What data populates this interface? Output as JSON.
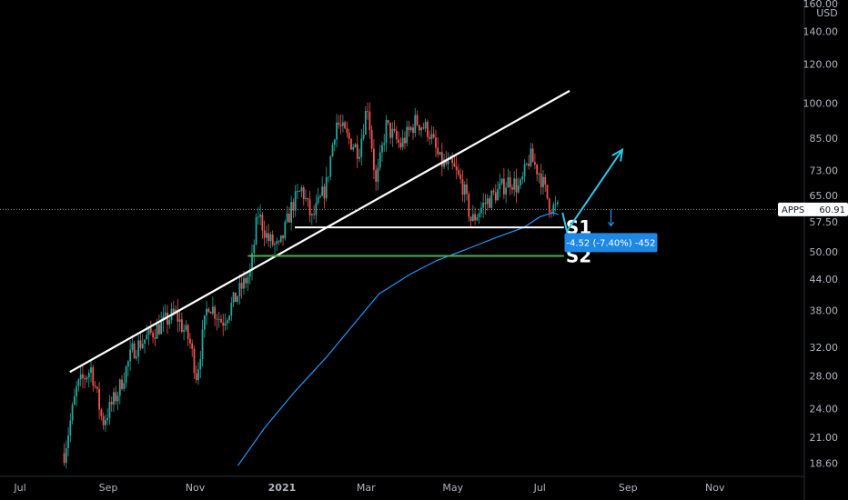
{
  "chart_data": {
    "type": "candlestick",
    "symbol": "APPS",
    "currency": "USD",
    "y_scale": "log",
    "ylim": [
      17.5,
      162
    ],
    "y_ticks": [
      "160.00",
      "140.00",
      "120.00",
      "100.00",
      "85.00",
      "73.00",
      "65.00",
      "57.50",
      "50.00",
      "44.00",
      "38.00",
      "32.00",
      "28.00",
      "24.00",
      "21.00",
      "18.60"
    ],
    "x_ticks": [
      "Jul",
      "Sep",
      "Nov",
      "2021",
      "Mar",
      "May",
      "Jul",
      "Sep",
      "Nov"
    ],
    "last_price": {
      "symbol": "APPS",
      "value": "60.91"
    },
    "trend_line": {
      "start": [
        "2020-08-05",
        28.5
      ],
      "end": [
        "2021-07-22",
        106.0
      ],
      "color": "#ffffff"
    },
    "support_levels": [
      {
        "name": "S1",
        "value": 56.0,
        "from": "2021-01-10",
        "to": "2021-07-18",
        "color": "#ffffff"
      },
      {
        "name": "S2",
        "value": 49.0,
        "from": "2020-12-08",
        "to": "2021-07-18",
        "color": "#4caf50"
      }
    ],
    "moving_average": {
      "color": "#2196f3",
      "points": [
        [
          "2020-12-01",
          18.4
        ],
        [
          "2020-12-20",
          22.0
        ],
        [
          "2021-01-10",
          26.0
        ],
        [
          "2021-02-01",
          30.5
        ],
        [
          "2021-02-20",
          35.5
        ],
        [
          "2021-03-10",
          41.0
        ],
        [
          "2021-04-01",
          45.0
        ],
        [
          "2021-04-20",
          48.0
        ],
        [
          "2021-05-10",
          50.5
        ],
        [
          "2021-06-01",
          53.5
        ],
        [
          "2021-06-20",
          56.0
        ],
        [
          "2021-07-01",
          58.8
        ],
        [
          "2021-07-10",
          60.0
        ],
        [
          "2021-07-14",
          59.5
        ]
      ]
    },
    "price_path": [
      [
        "2020-08-01",
        19.5
      ],
      [
        "2020-08-10",
        26.5
      ],
      [
        "2020-08-20",
        29.0
      ],
      [
        "2020-08-28",
        22.5
      ],
      [
        "2020-09-08",
        26.0
      ],
      [
        "2020-09-18",
        31.5
      ],
      [
        "2020-09-28",
        33.5
      ],
      [
        "2020-10-08",
        35.5
      ],
      [
        "2020-10-18",
        37.5
      ],
      [
        "2020-10-28",
        33.0
      ],
      [
        "2020-11-02",
        28.0
      ],
      [
        "2020-11-10",
        39.5
      ],
      [
        "2020-11-20",
        36.0
      ],
      [
        "2020-12-01",
        41.0
      ],
      [
        "2020-12-10",
        45.5
      ],
      [
        "2020-12-15",
        60.0
      ],
      [
        "2020-12-22",
        53.0
      ],
      [
        "2020-12-30",
        50.5
      ],
      [
        "2021-01-08",
        62.0
      ],
      [
        "2021-01-15",
        67.0
      ],
      [
        "2021-01-22",
        58.0
      ],
      [
        "2021-02-01",
        68.0
      ],
      [
        "2021-02-08",
        92.0
      ],
      [
        "2021-02-16",
        85.0
      ],
      [
        "2021-02-24",
        80.0
      ],
      [
        "2021-03-02",
        100.0
      ],
      [
        "2021-03-08",
        68.0
      ],
      [
        "2021-03-15",
        90.0
      ],
      [
        "2021-03-25",
        82.0
      ],
      [
        "2021-04-05",
        92.0
      ],
      [
        "2021-04-14",
        88.0
      ],
      [
        "2021-04-22",
        76.0
      ],
      [
        "2021-05-01",
        74.0
      ],
      [
        "2021-05-08",
        68.0
      ],
      [
        "2021-05-14",
        57.5
      ],
      [
        "2021-05-22",
        62.0
      ],
      [
        "2021-06-01",
        66.0
      ],
      [
        "2021-06-10",
        70.0
      ],
      [
        "2021-06-17",
        67.0
      ],
      [
        "2021-06-24",
        78.0
      ],
      [
        "2021-07-01",
        72.0
      ],
      [
        "2021-07-08",
        62.0
      ],
      [
        "2021-07-14",
        60.9
      ]
    ],
    "projection_arrow": {
      "from": [
        "2021-07-17",
        60.0
      ],
      "via": [
        "2021-07-20",
        55.0
      ],
      "to": [
        "2021-08-28",
        80.5
      ],
      "color": "#2ec4e8"
    },
    "measure": {
      "label": "-4.52 (-7.40%) -452",
      "price": 60.91,
      "date": "2021-08-20"
    }
  }
}
